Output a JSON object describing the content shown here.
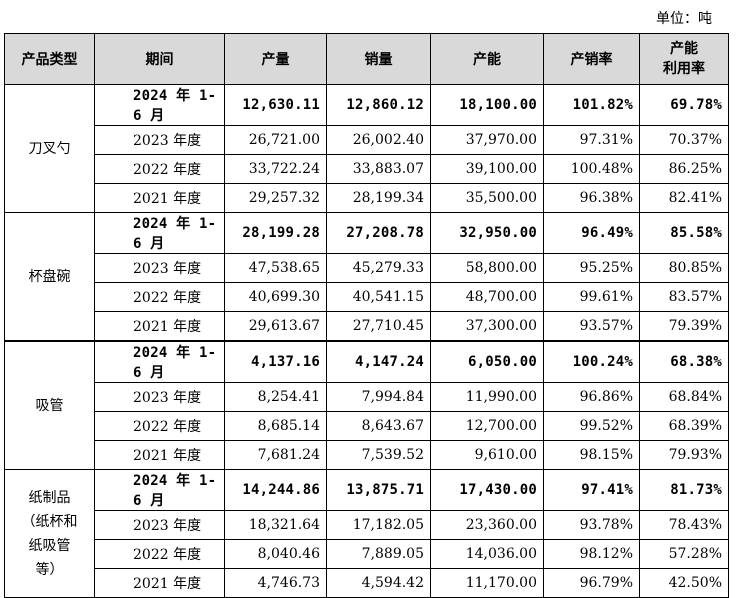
{
  "unit_label": "单位：吨",
  "headers": [
    "产品类型",
    "期间",
    "产量",
    "销量",
    "产能",
    "产销率",
    "产能\n利用率"
  ],
  "groups": [
    {
      "category": "刀叉勺",
      "rows": [
        {
          "period": "2024 年 1-6 月",
          "output": "12,630.11",
          "sales": "12,860.12",
          "capacity": "18,100.00",
          "sell_rate": "101.82%",
          "util_rate": "69.78%",
          "bold": true
        },
        {
          "period": "2023 年度",
          "output": "26,721.00",
          "sales": "26,002.40",
          "capacity": "37,970.00",
          "sell_rate": "97.31%",
          "util_rate": "70.37%"
        },
        {
          "period": "2022 年度",
          "output": "33,722.24",
          "sales": "33,883.07",
          "capacity": "39,100.00",
          "sell_rate": "100.48%",
          "util_rate": "86.25%"
        },
        {
          "period": "2021 年度",
          "output": "29,257.32",
          "sales": "28,199.34",
          "capacity": "35,500.00",
          "sell_rate": "96.38%",
          "util_rate": "82.41%"
        }
      ]
    },
    {
      "category": "杯盘碗",
      "rows": [
        {
          "period": "2024 年 1-6 月",
          "output": "28,199.28",
          "sales": "27,208.78",
          "capacity": "32,950.00",
          "sell_rate": "96.49%",
          "util_rate": "85.58%",
          "bold": true
        },
        {
          "period": "2023 年度",
          "output": "47,538.65",
          "sales": "45,279.33",
          "capacity": "58,800.00",
          "sell_rate": "95.25%",
          "util_rate": "80.85%"
        },
        {
          "period": "2022 年度",
          "output": "40,699.30",
          "sales": "40,541.15",
          "capacity": "48,700.00",
          "sell_rate": "99.61%",
          "util_rate": "83.57%"
        },
        {
          "period": "2021 年度",
          "output": "29,613.67",
          "sales": "27,710.45",
          "capacity": "37,300.00",
          "sell_rate": "93.57%",
          "util_rate": "79.39%"
        }
      ]
    },
    {
      "category": "吸管",
      "rows": [
        {
          "period": "2024 年 1-6 月",
          "output": "4,137.16",
          "sales": "4,147.24",
          "capacity": "6,050.00",
          "sell_rate": "100.24%",
          "util_rate": "68.38%",
          "bold": true
        },
        {
          "period": "2023 年度",
          "output": "8,254.41",
          "sales": "7,994.84",
          "capacity": "11,990.00",
          "sell_rate": "96.86%",
          "util_rate": "68.84%"
        },
        {
          "period": "2022 年度",
          "output": "8,685.14",
          "sales": "8,643.67",
          "capacity": "12,700.00",
          "sell_rate": "99.52%",
          "util_rate": "68.39%"
        },
        {
          "period": "2021 年度",
          "output": "7,681.24",
          "sales": "7,539.52",
          "capacity": "9,610.00",
          "sell_rate": "98.15%",
          "util_rate": "79.93%"
        }
      ]
    },
    {
      "category": "纸制品\n（纸杯和\n纸吸管\n等）",
      "rows": [
        {
          "period": "2024 年 1-6 月",
          "output": "14,244.86",
          "sales": "13,875.71",
          "capacity": "17,430.00",
          "sell_rate": "97.41%",
          "util_rate": "81.73%",
          "bold": true
        },
        {
          "period": "2023 年度",
          "output": "18,321.64",
          "sales": "17,182.05",
          "capacity": "23,360.00",
          "sell_rate": "93.78%",
          "util_rate": "78.43%"
        },
        {
          "period": "2022 年度",
          "output": "8,040.46",
          "sales": "7,889.05",
          "capacity": "14,036.00",
          "sell_rate": "98.12%",
          "util_rate": "57.28%"
        },
        {
          "period": "2021 年度",
          "output": "4,746.73",
          "sales": "4,594.42",
          "capacity": "11,170.00",
          "sell_rate": "96.79%",
          "util_rate": "42.50%"
        }
      ]
    }
  ]
}
